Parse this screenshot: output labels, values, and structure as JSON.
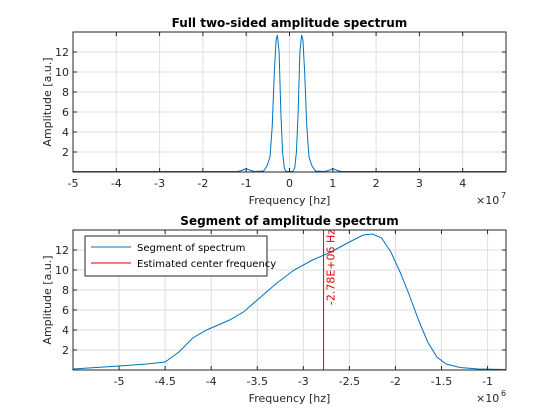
{
  "chart_data": [
    {
      "type": "line",
      "title": "Full two-sided amplitude spectrum",
      "xlabel": "Frequency [hz]",
      "ylabel": "Amplitude [a.u.]",
      "x_exponent_label": "×10",
      "x_exponent_power": "7",
      "xlim": [
        -50000000,
        50000000
      ],
      "ylim": [
        0,
        14
      ],
      "grid": true,
      "xticks": [
        -50000000,
        -40000000,
        -30000000,
        -20000000,
        -10000000,
        0,
        10000000,
        20000000,
        30000000,
        40000000
      ],
      "xtick_labels": [
        "-5",
        "-4",
        "-3",
        "-2",
        "-1",
        "0",
        "1",
        "2",
        "3",
        "4"
      ],
      "yticks": [
        2,
        4,
        6,
        8,
        10,
        12
      ],
      "ytick_labels": [
        "2",
        "4",
        "6",
        "8",
        "10",
        "12"
      ],
      "series": [
        {
          "color": "#0072bd",
          "x": [
            -50000000,
            -12000000,
            -11000000,
            -10000000,
            -9000000,
            -8000000,
            -6000000,
            -5200000,
            -4500000,
            -4000000,
            -3500000,
            -3100000,
            -2800000,
            -2400000,
            -2000000,
            -1600000,
            -1200000,
            -800000,
            0,
            800000,
            1200000,
            1600000,
            2000000,
            2400000,
            2800000,
            3100000,
            3500000,
            4000000,
            4500000,
            5200000,
            6000000,
            8000000,
            9000000,
            10000000,
            11000000,
            12000000,
            50000000
          ],
          "y": [
            0.05,
            0.05,
            0.15,
            0.35,
            0.15,
            0.05,
            0.1,
            0.6,
            1.5,
            4.5,
            10,
            13.2,
            13.7,
            12,
            6,
            2,
            0.4,
            0.05,
            0.05,
            0.05,
            0.4,
            2,
            6,
            12,
            13.7,
            13.2,
            10,
            4.5,
            1.5,
            0.6,
            0.1,
            0.05,
            0.15,
            0.35,
            0.15,
            0.05,
            0.05
          ]
        }
      ]
    },
    {
      "type": "line",
      "title": "Segment of amplitude spectrum",
      "xlabel": "Frequency [hz]",
      "ylabel": "Amplitude [a.u.]",
      "x_exponent_label": "×10",
      "x_exponent_power": "6",
      "xlim": [
        -5500000,
        -800000
      ],
      "ylim": [
        0,
        14
      ],
      "grid": true,
      "xticks": [
        -5000000,
        -4500000,
        -4000000,
        -3500000,
        -3000000,
        -2500000,
        -2000000,
        -1500000,
        -1000000
      ],
      "xtick_labels": [
        "-5",
        "-4.5",
        "-4",
        "-3.5",
        "-3",
        "-2.5",
        "-2",
        "-1.5",
        "-1"
      ],
      "yticks": [
        2,
        4,
        6,
        8,
        10,
        12
      ],
      "ytick_labels": [
        "2",
        "4",
        "6",
        "8",
        "10",
        "12"
      ],
      "legend_position": "top-left",
      "series": [
        {
          "name": "Segment of spectrum",
          "color": "#0072bd",
          "x": [
            -5500000,
            -5000000,
            -4700000,
            -4500000,
            -4350000,
            -4200000,
            -4050000,
            -3950000,
            -3800000,
            -3650000,
            -3500000,
            -3300000,
            -3100000,
            -2900000,
            -2700000,
            -2500000,
            -2350000,
            -2250000,
            -2150000,
            -2050000,
            -1950000,
            -1850000,
            -1750000,
            -1650000,
            -1550000,
            -1450000,
            -1300000,
            -1100000,
            -800000
          ],
          "y": [
            0.1,
            0.4,
            0.6,
            0.8,
            1.8,
            3.2,
            4.0,
            4.4,
            5.0,
            5.8,
            7.0,
            8.6,
            10.0,
            11.0,
            11.8,
            12.8,
            13.5,
            13.6,
            13.2,
            11.8,
            9.8,
            7.5,
            5.0,
            2.8,
            1.3,
            0.6,
            0.25,
            0.1,
            0.05
          ]
        },
        {
          "name": "Estimated center frequency",
          "color": "#e00000",
          "x": [
            -2780000,
            -2780000
          ],
          "y": [
            0,
            14
          ]
        }
      ],
      "annotations": [
        {
          "text": "-2.78E+06 Hz",
          "x": -2780000,
          "y": 10.3,
          "rotation": -90,
          "color": "#e00000"
        }
      ]
    }
  ]
}
